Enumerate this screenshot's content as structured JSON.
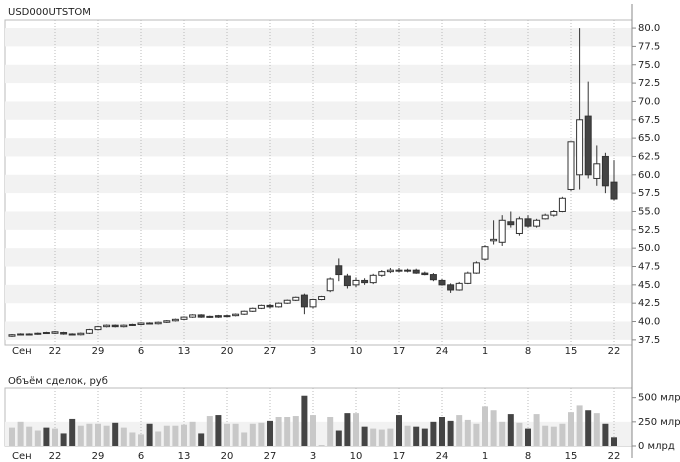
{
  "chart_data": [
    {
      "type": "candlestick",
      "title": "USD000UTSTOM",
      "categories": [
        "Сен",
        null,
        null,
        null,
        null,
        "22",
        null,
        null,
        null,
        null,
        "29",
        null,
        null,
        null,
        null,
        "6",
        null,
        null,
        null,
        null,
        "13",
        null,
        null,
        null,
        null,
        "20",
        null,
        null,
        null,
        null,
        "27",
        null,
        null,
        null,
        null,
        "3",
        null,
        null,
        null,
        null,
        "10",
        null,
        null,
        null,
        null,
        "17",
        null,
        null,
        null,
        null,
        "24",
        null,
        null,
        null,
        null,
        "1",
        null,
        null,
        null,
        null,
        "8",
        null,
        null,
        null,
        null,
        "15",
        null,
        null,
        null,
        null,
        "22"
      ],
      "open": [
        38.0,
        38.2,
        38.3,
        38.3,
        38.5,
        38.4,
        38.5,
        38.3,
        38.2,
        38.4,
        38.9,
        39.3,
        39.5,
        39.3,
        39.5,
        39.6,
        39.8,
        39.7,
        39.9,
        40.1,
        40.3,
        40.6,
        40.9,
        40.6,
        40.8,
        40.7,
        40.8,
        41.0,
        41.4,
        41.8,
        42.2,
        42.0,
        42.5,
        42.9,
        43.6,
        42.0,
        43.0,
        44.2,
        47.6,
        46.2,
        45.0,
        45.6,
        45.3,
        46.3,
        46.8,
        47.0,
        46.9,
        47.0,
        46.6,
        46.4,
        45.6,
        45.0,
        44.3,
        45.2,
        46.6,
        48.5,
        51.0,
        50.8,
        53.6,
        52.0,
        54.0,
        53.0,
        54.0,
        54.5,
        55.0,
        58.0,
        60.0,
        68.0,
        59.5,
        62.5,
        59.0
      ],
      "high": [
        38.3,
        38.4,
        38.4,
        38.5,
        38.6,
        38.7,
        38.6,
        38.4,
        38.5,
        39.0,
        39.4,
        39.6,
        39.6,
        39.6,
        39.7,
        39.9,
        39.9,
        40.0,
        40.2,
        40.4,
        40.7,
        41.0,
        41.0,
        40.8,
        40.9,
        40.9,
        41.1,
        41.5,
        41.9,
        42.3,
        42.4,
        42.6,
        43.0,
        43.4,
        43.8,
        43.1,
        43.5,
        46.0,
        48.6,
        46.5,
        46.0,
        45.9,
        46.5,
        47.0,
        47.3,
        47.3,
        47.2,
        47.2,
        46.8,
        46.6,
        45.8,
        45.2,
        45.4,
        46.8,
        48.2,
        50.4,
        53.8,
        54.5,
        55.0,
        54.3,
        54.5,
        54.0,
        54.7,
        55.2,
        57.0,
        64.5,
        80.0,
        72.7,
        64.0,
        63.0,
        62.0
      ],
      "low": [
        37.9,
        38.1,
        38.2,
        38.2,
        38.3,
        38.3,
        38.2,
        38.1,
        38.1,
        38.3,
        38.8,
        39.2,
        39.2,
        39.2,
        39.4,
        39.5,
        39.6,
        39.6,
        39.8,
        40.0,
        40.2,
        40.5,
        40.5,
        40.5,
        40.5,
        40.6,
        40.7,
        40.9,
        41.3,
        41.7,
        41.8,
        41.9,
        42.4,
        42.8,
        41.0,
        41.8,
        42.9,
        44.0,
        45.5,
        44.5,
        44.7,
        45.0,
        45.1,
        46.1,
        46.6,
        46.7,
        46.7,
        46.5,
        46.3,
        45.5,
        44.9,
        43.9,
        44.2,
        45.1,
        46.5,
        48.3,
        50.5,
        50.3,
        52.8,
        51.7,
        52.8,
        52.8,
        53.9,
        54.3,
        54.9,
        57.8,
        58.0,
        59.5,
        58.5,
        57.5,
        56.5
      ],
      "close": [
        38.2,
        38.3,
        38.3,
        38.4,
        38.4,
        38.6,
        38.3,
        38.2,
        38.4,
        38.9,
        39.3,
        39.5,
        39.3,
        39.5,
        39.6,
        39.8,
        39.7,
        39.9,
        40.1,
        40.3,
        40.6,
        40.9,
        40.6,
        40.7,
        40.6,
        40.8,
        41.0,
        41.4,
        41.8,
        42.2,
        42.0,
        42.5,
        42.9,
        43.3,
        42.0,
        43.0,
        43.4,
        45.8,
        46.4,
        44.9,
        45.6,
        45.3,
        46.3,
        46.8,
        47.0,
        46.9,
        47.0,
        46.6,
        46.4,
        45.7,
        45.0,
        44.3,
        45.2,
        46.6,
        48.0,
        50.2,
        51.2,
        53.8,
        53.2,
        54.0,
        53.0,
        53.8,
        54.5,
        55.0,
        56.8,
        64.5,
        67.5,
        60.0,
        61.5,
        58.5,
        56.7
      ],
      "up_color": "#ffffff",
      "down_color": "#444444",
      "line_color": "#333333",
      "ylim": [
        36.8,
        81.1
      ],
      "yticks": [
        37.5,
        {
          "value": 40,
          "label": "40.0"
        },
        42.5,
        {
          "value": 45,
          "label": "45.0"
        },
        47.5,
        {
          "value": 50,
          "label": "50.0"
        },
        52.5,
        {
          "value": 55,
          "label": "55.0"
        },
        57.5,
        {
          "value": 60,
          "label": "60.0"
        },
        62.5,
        {
          "value": 65,
          "label": "65.0"
        },
        67.5,
        {
          "value": 70,
          "label": "70.0"
        },
        72.5,
        {
          "value": 75,
          "label": "75.0"
        },
        77.5,
        {
          "value": 80,
          "label": "80.0"
        }
      ],
      "grid": true
    },
    {
      "type": "bar",
      "title": "Объём сделок, руб",
      "categories": [
        "Сен",
        null,
        null,
        null,
        null,
        "22",
        null,
        null,
        null,
        null,
        "29",
        null,
        null,
        null,
        null,
        "6",
        null,
        null,
        null,
        null,
        "13",
        null,
        null,
        null,
        null,
        "20",
        null,
        null,
        null,
        null,
        "27",
        null,
        null,
        null,
        null,
        "3",
        null,
        null,
        null,
        null,
        "10",
        null,
        null,
        null,
        null,
        "17",
        null,
        null,
        null,
        null,
        "24",
        null,
        null,
        null,
        null,
        "1",
        null,
        null,
        null,
        null,
        "8",
        null,
        null,
        null,
        null,
        "15",
        null,
        null,
        null,
        null,
        "22"
      ],
      "values": [
        190,
        250,
        200,
        160,
        190,
        180,
        130,
        280,
        210,
        230,
        230,
        210,
        240,
        190,
        140,
        120,
        230,
        150,
        210,
        210,
        220,
        250,
        130,
        310,
        320,
        230,
        230,
        140,
        230,
        240,
        260,
        300,
        300,
        310,
        520,
        320,
        10,
        300,
        160,
        340,
        340,
        200,
        180,
        170,
        180,
        320,
        210,
        200,
        180,
        250,
        300,
        260,
        320,
        270,
        230,
        410,
        370,
        250,
        330,
        240,
        180,
        330,
        210,
        200,
        230,
        350,
        420,
        370,
        340,
        230,
        90
      ],
      "up_color": "#c8c8c8",
      "down_color": "#444444",
      "ylim": [
        0,
        600
      ],
      "yticks": [
        {
          "value": 0,
          "label": "0 млрд"
        },
        {
          "value": 250,
          "label": "250 млрд"
        },
        {
          "value": 500,
          "label": "500 млрд"
        }
      ],
      "grid": true
    }
  ]
}
